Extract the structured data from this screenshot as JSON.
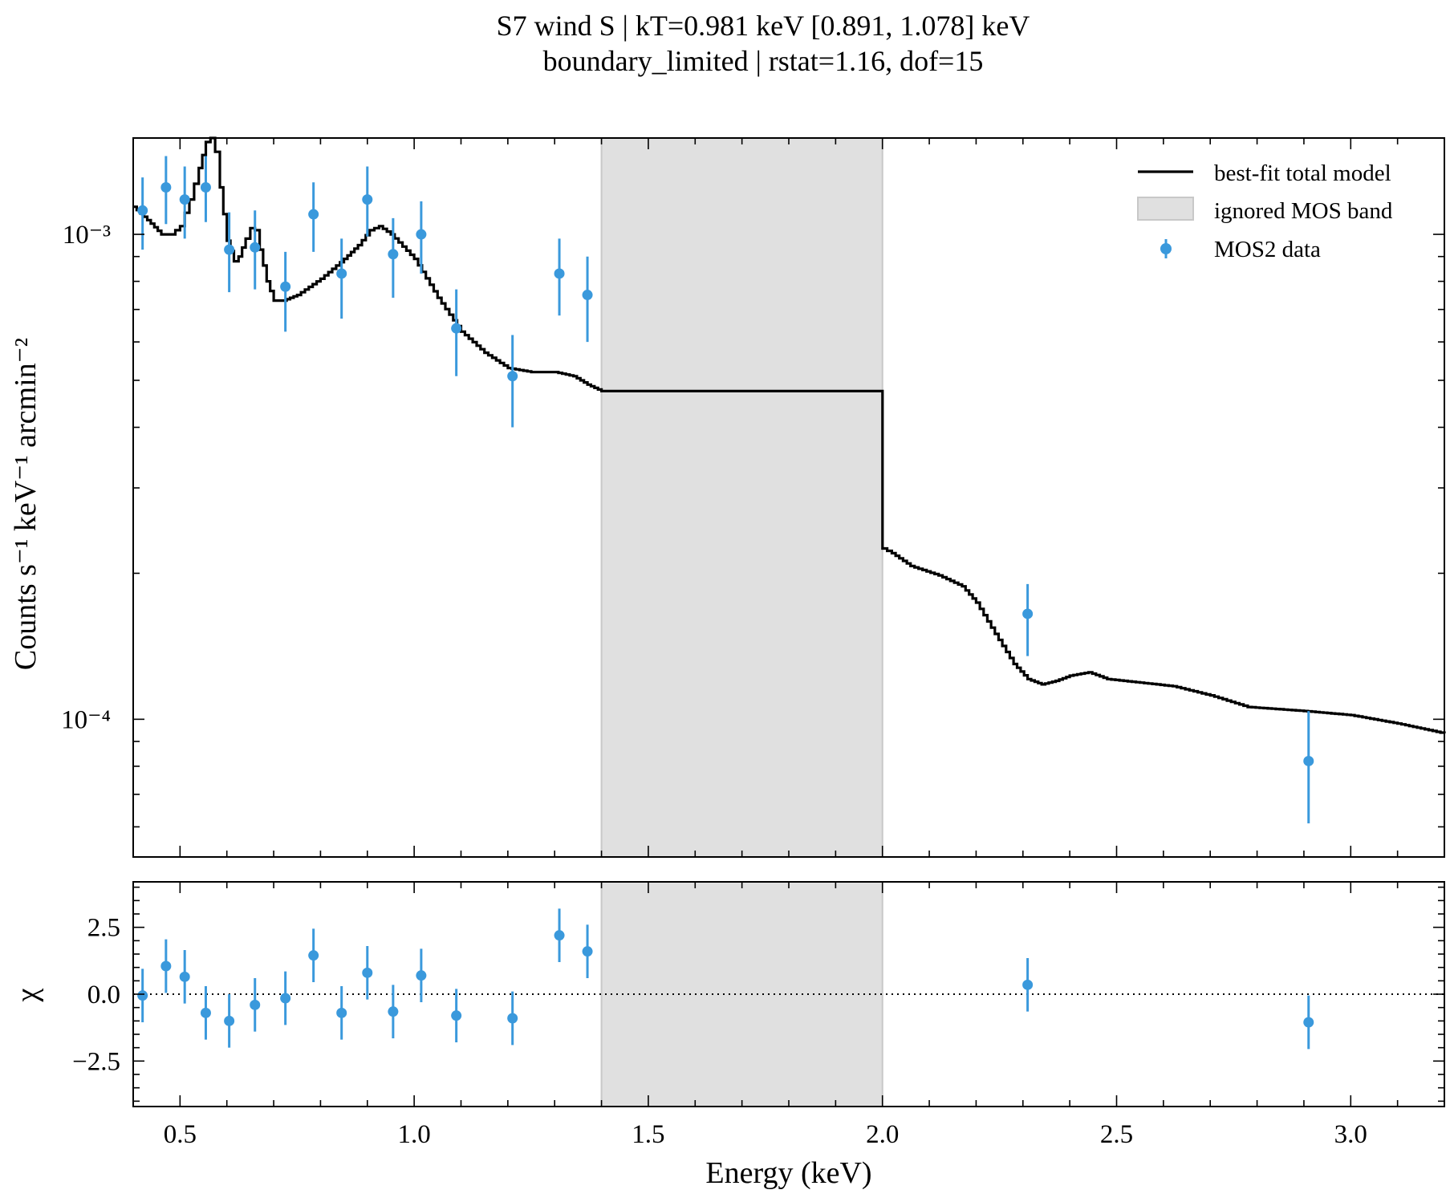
{
  "chart_data": {
    "type": "scatter",
    "title": "S7 wind S | kT=0.981 keV [0.891, 1.078] keV",
    "subtitle": "boundary_limited | rstat=1.16, dof=15",
    "xlabel": "Energy (keV)",
    "xlim": [
      0.4,
      3.2
    ],
    "x_ticks": [
      "0.5",
      "1.0",
      "1.5",
      "2.0",
      "2.5",
      "3.0"
    ],
    "x_tick_values": [
      0.5,
      1.0,
      1.5,
      2.0,
      2.5,
      3.0
    ],
    "ignored_band": {
      "label": "ignored MOS band",
      "range": [
        1.4,
        2.0
      ],
      "color": "#e0e0e0"
    },
    "legend": {
      "placement": "top-right",
      "entries": [
        {
          "label": "best-fit total model",
          "color": "#000000"
        },
        {
          "label": "ignored MOS band",
          "color": "#e0e0e0"
        },
        {
          "label": "MOS2 data",
          "color": "#3a99dc"
        }
      ]
    },
    "spectrum_panel": {
      "ylabel": "Counts s⁻¹ keV⁻¹ arcmin⁻²",
      "y_scale": "log",
      "ylim": [
        5.2e-05,
        0.00158
      ],
      "y_ticks": [
        {
          "value": 0.0001,
          "label": "10⁻⁴"
        },
        {
          "value": 0.001,
          "label": "10⁻³"
        }
      ],
      "model": {
        "name": "best-fit total model",
        "x": [
          0.4,
          0.43,
          0.46,
          0.48,
          0.5,
          0.52,
          0.54,
          0.555,
          0.565,
          0.575,
          0.585,
          0.6,
          0.615,
          0.625,
          0.64,
          0.65,
          0.66,
          0.67,
          0.685,
          0.7,
          0.72,
          0.75,
          0.8,
          0.85,
          0.88,
          0.905,
          0.925,
          0.95,
          1.0,
          1.05,
          1.1,
          1.15,
          1.2,
          1.25,
          1.3,
          1.34,
          1.37,
          1.4,
          2.0,
          2.0001,
          2.02,
          2.06,
          2.12,
          2.17,
          2.2,
          2.24,
          2.28,
          2.31,
          2.34,
          2.37,
          2.4,
          2.44,
          2.48,
          2.55,
          2.62,
          2.7,
          2.78,
          2.9,
          3.0,
          3.1,
          3.2
        ],
        "y": [
          0.00114,
          0.00107,
          0.001,
          0.001,
          0.00104,
          0.00118,
          0.00137,
          0.00155,
          0.00158,
          0.00148,
          0.00125,
          0.00097,
          0.00088,
          0.0009,
          0.00098,
          0.00103,
          0.00102,
          0.00093,
          0.0008,
          0.00073,
          0.00073,
          0.00075,
          0.00081,
          0.00089,
          0.00095,
          0.00102,
          0.00104,
          0.001,
          0.00089,
          0.00074,
          0.00063,
          0.00057,
          0.00053,
          0.00052,
          0.00052,
          0.00051,
          0.00049,
          0.000475,
          0.000475,
          0.000225,
          0.00022,
          0.000207,
          0.000198,
          0.000188,
          0.000174,
          0.00015,
          0.00013,
          0.000121,
          0.000118,
          0.00012,
          0.000123,
          0.000125,
          0.000121,
          0.000119,
          0.000117,
          0.000112,
          0.000106,
          0.000104,
          0.000102,
          9.8e-05,
          9.35e-05
        ]
      },
      "data": {
        "name": "MOS2 data",
        "x": [
          0.42,
          0.47,
          0.51,
          0.555,
          0.605,
          0.66,
          0.725,
          0.785,
          0.845,
          0.9,
          0.955,
          1.015,
          1.09,
          1.21,
          1.31,
          1.37,
          2.31,
          2.91
        ],
        "y": [
          0.00112,
          0.00125,
          0.00118,
          0.00125,
          0.00093,
          0.00094,
          0.00078,
          0.0011,
          0.00083,
          0.00118,
          0.00091,
          0.001,
          0.00064,
          0.00051,
          0.00083,
          0.00075,
          0.000165,
          8.2e-05
        ],
        "yerr_low": [
          0.00093,
          0.00105,
          0.00098,
          0.00106,
          0.00076,
          0.00077,
          0.00063,
          0.00092,
          0.00067,
          0.00099,
          0.00074,
          0.00083,
          0.00051,
          0.0004,
          0.00068,
          0.0006,
          0.000135,
          6.1e-05
        ],
        "yerr_high": [
          0.00131,
          0.00145,
          0.00138,
          0.00145,
          0.00111,
          0.00112,
          0.00092,
          0.00128,
          0.00098,
          0.00138,
          0.00108,
          0.00117,
          0.00077,
          0.00062,
          0.00098,
          0.0009,
          0.00019,
          0.000104
        ]
      }
    },
    "residual_panel": {
      "ylabel": "χ",
      "ylim": [
        -4.2,
        4.2
      ],
      "y_ticks": [
        {
          "value": -2.5,
          "label": "−2.5"
        },
        {
          "value": 0.0,
          "label": "0.0"
        },
        {
          "value": 2.5,
          "label": "2.5"
        }
      ],
      "reference_line": 0.0,
      "data": {
        "name": "MOS2 data",
        "x": [
          0.42,
          0.47,
          0.51,
          0.555,
          0.605,
          0.66,
          0.725,
          0.785,
          0.845,
          0.9,
          0.955,
          1.015,
          1.09,
          1.21,
          1.31,
          1.37,
          2.31,
          2.91
        ],
        "y": [
          -0.05,
          1.05,
          0.65,
          -0.7,
          -1.0,
          -0.4,
          -0.15,
          1.45,
          -0.7,
          0.8,
          -0.65,
          0.7,
          -0.8,
          -0.9,
          2.2,
          1.6,
          0.35,
          -1.05
        ],
        "err": [
          1.0,
          1.0,
          1.0,
          1.0,
          1.0,
          1.0,
          1.0,
          1.0,
          1.0,
          1.0,
          1.0,
          1.0,
          1.0,
          1.0,
          1.0,
          1.0,
          1.0,
          1.0
        ]
      }
    },
    "colors": {
      "data": "#3a99dc",
      "model": "#000000",
      "band": "#e0e0e0",
      "band_edge": "#c8c8c8"
    }
  }
}
